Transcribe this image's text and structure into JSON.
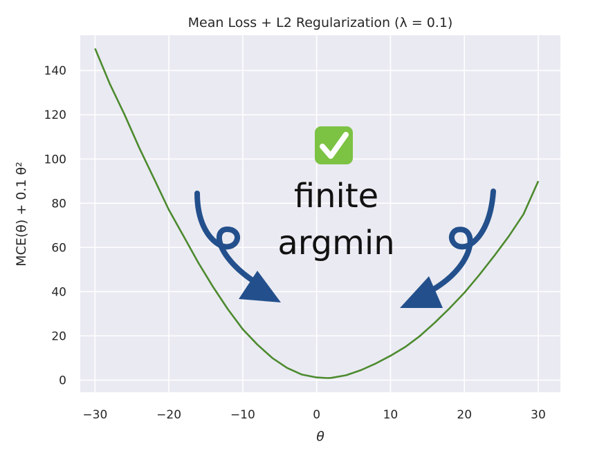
{
  "chart_data": {
    "type": "line",
    "title": "Mean Loss + L2 Regularization (λ = 0.1)",
    "xlabel": "θ",
    "ylabel": "MCE(θ) + 0.1 θ²",
    "xlim": [
      -32,
      33
    ],
    "ylim": [
      -5.5,
      156
    ],
    "xticks": [
      -30,
      -20,
      -10,
      0,
      10,
      20,
      30
    ],
    "yticks": [
      0,
      20,
      40,
      60,
      80,
      100,
      120,
      140
    ],
    "grid": true,
    "series": [
      {
        "x": [
          -30,
          -28,
          -26,
          -24,
          -22,
          -20,
          -18,
          -16,
          -14,
          -12,
          -10,
          -8,
          -6,
          -4,
          -2,
          0,
          1.5,
          2,
          4,
          6,
          8,
          10,
          12,
          14,
          16,
          18,
          20,
          22,
          24,
          26,
          28,
          30
        ],
        "y": [
          150,
          134,
          120,
          105,
          91,
          77,
          65,
          53,
          42,
          32,
          23,
          16,
          10,
          5.5,
          2.5,
          1.2,
          0.9,
          1.0,
          2.2,
          4.5,
          7.5,
          11,
          15,
          20,
          26,
          32.5,
          39.5,
          47.5,
          56,
          65,
          75,
          90
        ],
        "color": "#4c8a2e"
      }
    ],
    "annotations": {
      "check_emoji": "✅",
      "text_line1": "finite",
      "text_line2": "argmin",
      "arrow_color": "#23508c"
    }
  },
  "colors": {
    "plot_background": "#eaeaf2",
    "grid": "#ffffff",
    "check_green": "#7cc243"
  },
  "icons": {
    "check": "check-mark-button-icon",
    "arrows": "curly-arrow-icon"
  }
}
